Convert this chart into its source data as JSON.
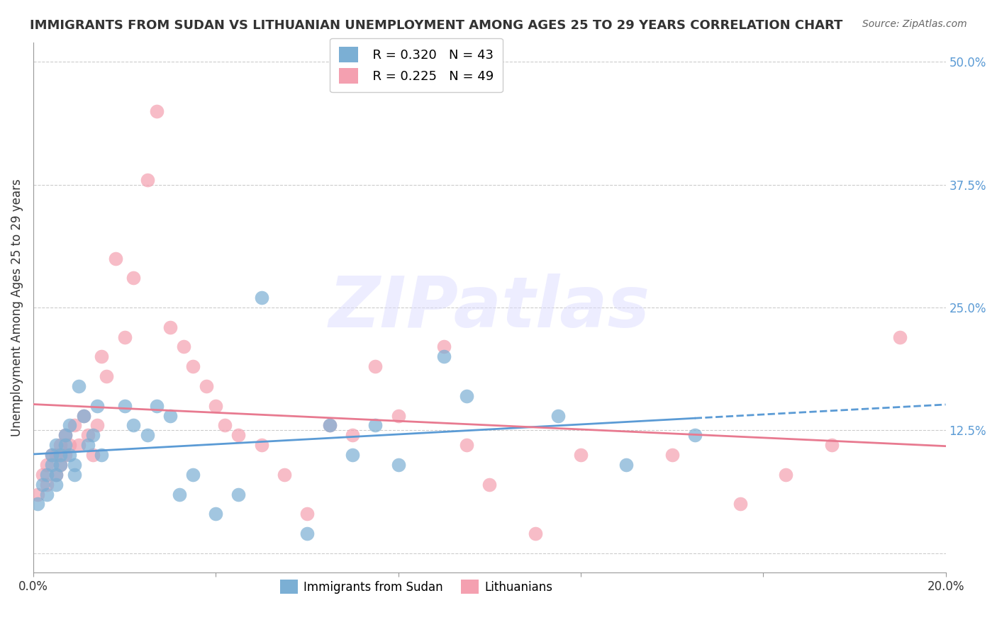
{
  "title": "IMMIGRANTS FROM SUDAN VS LITHUANIAN UNEMPLOYMENT AMONG AGES 25 TO 29 YEARS CORRELATION CHART",
  "source": "Source: ZipAtlas.com",
  "ylabel": "Unemployment Among Ages 25 to 29 years",
  "xlim": [
    0.0,
    0.2
  ],
  "ylim": [
    -0.02,
    0.52
  ],
  "xticks": [
    0.0,
    0.04,
    0.08,
    0.12,
    0.16,
    0.2
  ],
  "xticklabels": [
    "0.0%",
    "",
    "",
    "",
    "",
    "20.0%"
  ],
  "right_yticks": [
    0.0,
    0.125,
    0.25,
    0.375,
    0.5
  ],
  "right_yticklabels": [
    "",
    "12.5%",
    "25.0%",
    "37.5%",
    "50.0%"
  ],
  "legend_sudan_R": "R = 0.320",
  "legend_sudan_N": "N = 43",
  "legend_lith_R": "R = 0.225",
  "legend_lith_N": "N = 49",
  "color_sudan": "#7BAFD4",
  "color_lith": "#F4A0B0",
  "color_sudan_line": "#5B9BD5",
  "color_lith_line": "#E87A90",
  "color_title": "#333333",
  "color_right_axis": "#5B9BD5",
  "watermark_text": "ZIPatlas",
  "watermark_color": "#DDDDFF",
  "sudan_x": [
    0.001,
    0.002,
    0.003,
    0.003,
    0.004,
    0.004,
    0.005,
    0.005,
    0.005,
    0.006,
    0.006,
    0.007,
    0.007,
    0.008,
    0.008,
    0.009,
    0.009,
    0.01,
    0.011,
    0.012,
    0.013,
    0.014,
    0.015,
    0.02,
    0.022,
    0.025,
    0.027,
    0.03,
    0.032,
    0.035,
    0.04,
    0.045,
    0.05,
    0.06,
    0.065,
    0.07,
    0.075,
    0.08,
    0.09,
    0.095,
    0.115,
    0.13,
    0.145
  ],
  "sudan_y": [
    0.05,
    0.07,
    0.06,
    0.08,
    0.09,
    0.1,
    0.07,
    0.08,
    0.11,
    0.09,
    0.1,
    0.11,
    0.12,
    0.1,
    0.13,
    0.08,
    0.09,
    0.17,
    0.14,
    0.11,
    0.12,
    0.15,
    0.1,
    0.15,
    0.13,
    0.12,
    0.15,
    0.14,
    0.06,
    0.08,
    0.04,
    0.06,
    0.26,
    0.02,
    0.13,
    0.1,
    0.13,
    0.09,
    0.2,
    0.16,
    0.14,
    0.09,
    0.12
  ],
  "lith_x": [
    0.001,
    0.002,
    0.003,
    0.003,
    0.004,
    0.005,
    0.005,
    0.006,
    0.006,
    0.007,
    0.007,
    0.008,
    0.009,
    0.01,
    0.011,
    0.012,
    0.013,
    0.014,
    0.015,
    0.016,
    0.018,
    0.02,
    0.022,
    0.025,
    0.027,
    0.03,
    0.033,
    0.035,
    0.038,
    0.04,
    0.042,
    0.045,
    0.05,
    0.055,
    0.06,
    0.065,
    0.07,
    0.075,
    0.08,
    0.09,
    0.095,
    0.1,
    0.11,
    0.12,
    0.14,
    0.155,
    0.165,
    0.175,
    0.19
  ],
  "lith_y": [
    0.06,
    0.08,
    0.07,
    0.09,
    0.1,
    0.08,
    0.1,
    0.09,
    0.11,
    0.1,
    0.12,
    0.11,
    0.13,
    0.11,
    0.14,
    0.12,
    0.1,
    0.13,
    0.2,
    0.18,
    0.3,
    0.22,
    0.28,
    0.38,
    0.45,
    0.23,
    0.21,
    0.19,
    0.17,
    0.15,
    0.13,
    0.12,
    0.11,
    0.08,
    0.04,
    0.13,
    0.12,
    0.19,
    0.14,
    0.21,
    0.11,
    0.07,
    0.02,
    0.1,
    0.1,
    0.05,
    0.08,
    0.11,
    0.22
  ],
  "bg_color": "#FFFFFF",
  "grid_color": "#CCCCCC"
}
